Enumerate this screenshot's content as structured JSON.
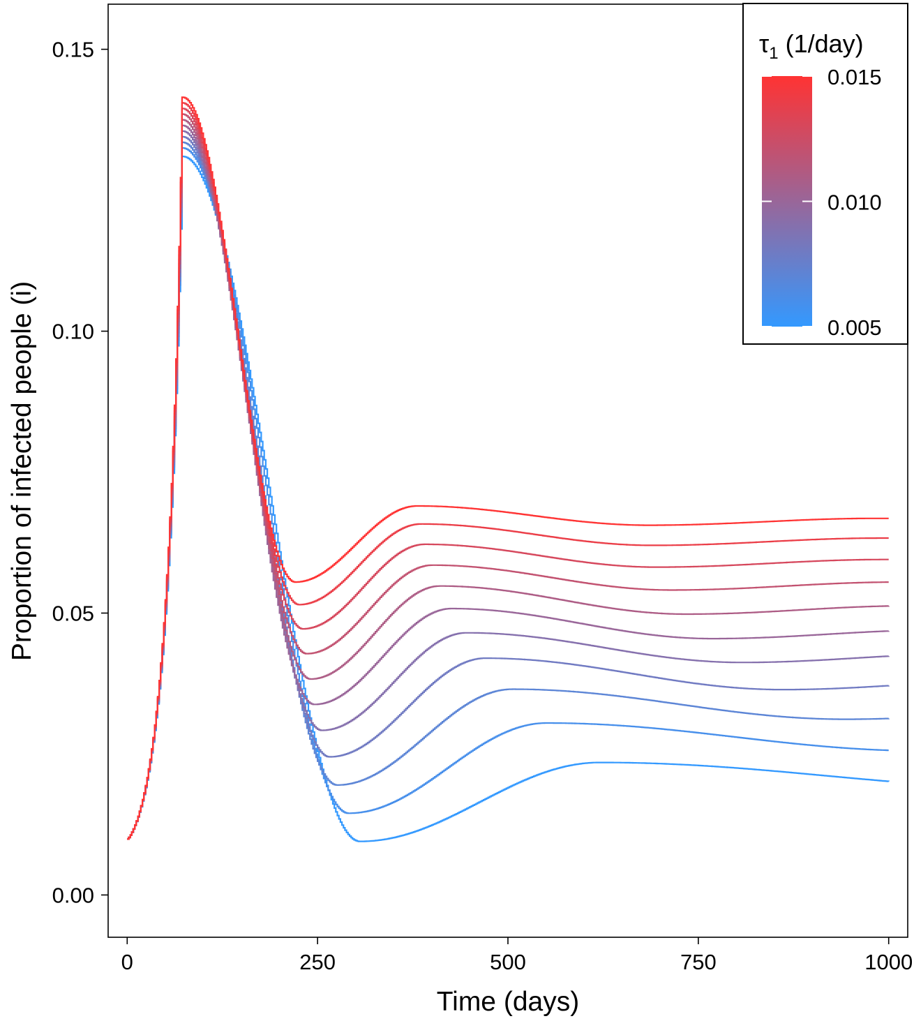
{
  "chart_data": {
    "type": "line",
    "title": "",
    "xlabel": "Time (days)",
    "ylabel": "Proportion of infected people (i)",
    "xlim": [
      -25,
      1025
    ],
    "ylim": [
      -0.0075,
      0.158
    ],
    "x_ticks": [
      0,
      250,
      500,
      750,
      1000
    ],
    "x_tick_labels": [
      "0",
      "250",
      "500",
      "750",
      "1000"
    ],
    "y_ticks": [
      0.0,
      0.05,
      0.1,
      0.15
    ],
    "y_tick_labels": [
      "0.00",
      "0.05",
      "0.10",
      "0.15"
    ],
    "grid": false,
    "legend": {
      "title_symbol": "τ",
      "title_subscript": "1",
      "title_rest": " (1/day)",
      "type": "colorbar",
      "placement": "top-right",
      "range": [
        0.005,
        0.015
      ],
      "tick_values": [
        0.015,
        0.01,
        0.005
      ],
      "tick_labels": [
        "0.015",
        "0.010",
        "0.005"
      ],
      "color_low": "#3399ff",
      "color_high": "#ff3333"
    },
    "series_shared": {
      "peak_day": 72,
      "initial_value": 0.0099
    },
    "series": [
      {
        "tau1": 0.005,
        "peak": 0.131,
        "trough_day": 305,
        "trough": 0.0095,
        "hump_day": 620,
        "hump": 0.0235,
        "final": 0.02
      },
      {
        "tau1": 0.006,
        "peak": 0.1325,
        "trough_day": 290,
        "trough": 0.0145,
        "hump_day": 550,
        "hump": 0.0305,
        "final": 0.027
      },
      {
        "tau1": 0.007,
        "peak": 0.1335,
        "trough_day": 275,
        "trough": 0.0195,
        "hump_day": 505,
        "hump": 0.0365,
        "final": 0.0327
      },
      {
        "tau1": 0.008,
        "peak": 0.1345,
        "trough_day": 265,
        "trough": 0.0245,
        "hump_day": 470,
        "hump": 0.042,
        "final": 0.038
      },
      {
        "tau1": 0.009,
        "peak": 0.1355,
        "trough_day": 255,
        "trough": 0.0292,
        "hump_day": 445,
        "hump": 0.0465,
        "final": 0.0428
      },
      {
        "tau1": 0.01,
        "peak": 0.1365,
        "trough_day": 245,
        "trough": 0.0338,
        "hump_day": 425,
        "hump": 0.0508,
        "final": 0.047
      },
      {
        "tau1": 0.011,
        "peak": 0.1375,
        "trough_day": 240,
        "trough": 0.0383,
        "hump_day": 410,
        "hump": 0.0548,
        "final": 0.0513
      },
      {
        "tau1": 0.012,
        "peak": 0.1385,
        "trough_day": 235,
        "trough": 0.0428,
        "hump_day": 400,
        "hump": 0.0585,
        "final": 0.0555
      },
      {
        "tau1": 0.013,
        "peak": 0.1395,
        "trough_day": 230,
        "trough": 0.0472,
        "hump_day": 390,
        "hump": 0.0622,
        "final": 0.0595
      },
      {
        "tau1": 0.014,
        "peak": 0.1405,
        "trough_day": 225,
        "trough": 0.0515,
        "hump_day": 385,
        "hump": 0.0658,
        "final": 0.0633
      },
      {
        "tau1": 0.015,
        "peak": 0.1415,
        "trough_day": 220,
        "trough": 0.0555,
        "hump_day": 380,
        "hump": 0.069,
        "final": 0.0668
      }
    ]
  }
}
